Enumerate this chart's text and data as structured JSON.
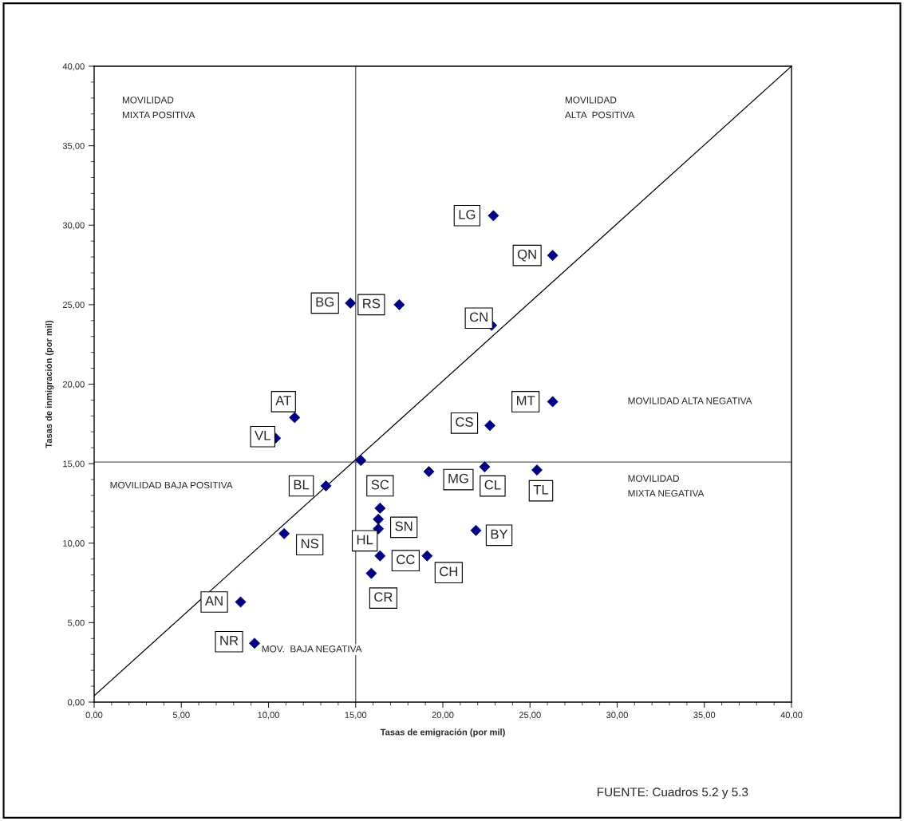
{
  "chart_data": {
    "type": "scatter",
    "xlabel": "Tasas de emigración (por mil)",
    "ylabel": "Tasas de inmigración (por mil)",
    "xlim": [
      0,
      40
    ],
    "ylim": [
      0,
      40
    ],
    "xticks": [
      {
        "value": 0,
        "label": "0,00"
      },
      {
        "value": 5,
        "label": "5,00"
      },
      {
        "value": 10,
        "label": "10,00"
      },
      {
        "value": 15,
        "label": "15,00"
      },
      {
        "value": 20,
        "label": "20,00"
      },
      {
        "value": 25,
        "label": "25,00"
      },
      {
        "value": 30,
        "label": "30,00"
      },
      {
        "value": 35,
        "label": "35,00"
      },
      {
        "value": 40,
        "label": "40,00"
      }
    ],
    "yticks": [
      {
        "value": 0,
        "label": "0,00"
      },
      {
        "value": 5,
        "label": "5,00"
      },
      {
        "value": 10,
        "label": "10,00"
      },
      {
        "value": 15,
        "label": "15,00"
      },
      {
        "value": 20,
        "label": "20,00"
      },
      {
        "value": 25,
        "label": "25,00"
      },
      {
        "value": 30,
        "label": "30,00"
      },
      {
        "value": 35,
        "label": "35,00"
      },
      {
        "value": 40,
        "label": "40,00"
      }
    ],
    "grid": false,
    "legend": false,
    "series": [
      {
        "marker": "diamond",
        "color": "#000080",
        "x": [
          22.9,
          26.3,
          14.7,
          17.5,
          22.8,
          26.3,
          22.7,
          11.5,
          10.4,
          13.3,
          19.2,
          22.4,
          25.4,
          21.9,
          19.1,
          16.4,
          16.3,
          16.3,
          16.4,
          15.9,
          10.9,
          8.4,
          9.2,
          15.3
        ],
        "values": [
          30.6,
          28.1,
          25.1,
          25.0,
          23.7,
          18.9,
          17.4,
          17.9,
          16.6,
          13.6,
          14.5,
          14.8,
          14.6,
          10.8,
          9.2,
          9.2,
          10.9,
          11.5,
          12.2,
          8.1,
          10.6,
          6.3,
          3.7,
          15.2
        ],
        "value_labels": [
          "LG",
          "QN",
          "BG",
          "RS",
          "CN",
          "MT",
          "CS",
          "AT",
          "VL",
          "BL",
          "MG",
          "CL",
          "TL",
          "BY",
          "CH",
          "CC",
          "HL",
          "SN",
          "SC",
          "CR",
          "NS",
          "AN",
          "NR",
          null
        ]
      },
      {
        "type": "line",
        "color": "#000000",
        "x": [
          0,
          40
        ],
        "values": [
          0.4,
          40
        ]
      }
    ],
    "ref_lines": [
      {
        "axis": "x",
        "value": 15,
        "color": "#606060"
      },
      {
        "axis": "y",
        "value": 15.1,
        "color": "#606060"
      }
    ],
    "annotations": [
      "MOVILIDAD\nMIXTA POSITIVA",
      "MOVILIDAD\nALTA  POSITIVA",
      "MOVILIDAD ALTA NEGATIVA",
      "MOVILIDAD BAJA POSITIVA",
      "MOVILIDAD\nMIXTA NEGATIVA",
      "MOV.  BAJA NEGATIVA",
      "FUENTE: Cuadros 5.2 y 5.3"
    ]
  }
}
